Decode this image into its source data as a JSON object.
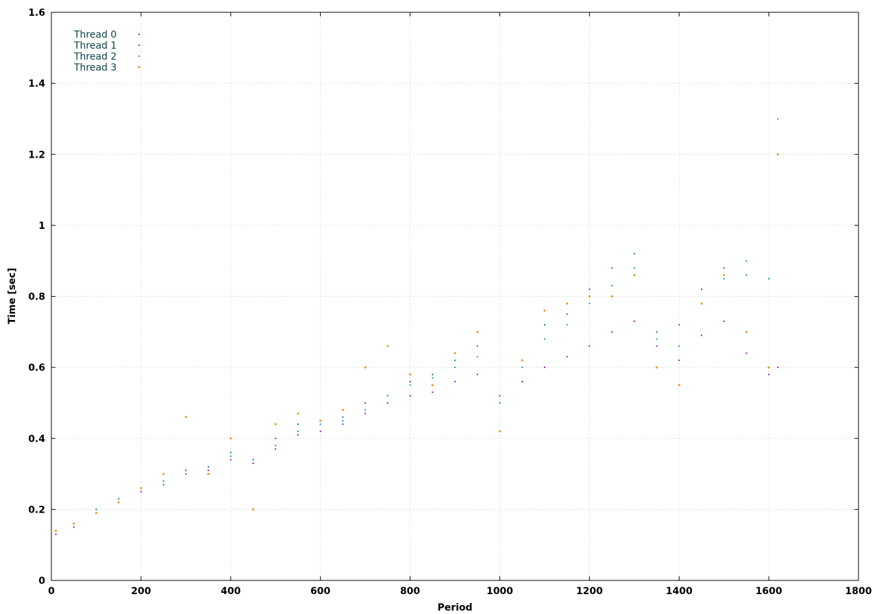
{
  "chart_data": {
    "type": "scatter",
    "title": "",
    "xlabel": "Period",
    "ylabel": "Time [sec]",
    "xlim": [
      0,
      1800
    ],
    "ylim": [
      0,
      1.6
    ],
    "x_ticks": [
      0,
      200,
      400,
      600,
      800,
      1000,
      1200,
      1400,
      1600,
      1800
    ],
    "x_tick_labels": [
      "0",
      "200",
      "400",
      "600",
      "800",
      "1000",
      "1200",
      "1400",
      "1600",
      "1800"
    ],
    "y_ticks": [
      0,
      0.2,
      0.4,
      0.6,
      0.8,
      1.0,
      1.2,
      1.4,
      1.6
    ],
    "y_tick_labels": [
      "0",
      "0.2",
      "0.4",
      "0.6",
      "0.8",
      "1",
      "1.2",
      "1.4",
      "1.6"
    ],
    "grid": true,
    "legend_position": "top-left",
    "series": [
      {
        "name": "Thread 0",
        "color": "#9400d3",
        "marker": "dot",
        "x": [
          10,
          50,
          100,
          150,
          200,
          250,
          300,
          350,
          400,
          450,
          500,
          550,
          600,
          650,
          700,
          750,
          800,
          850,
          900,
          950,
          1000,
          1050,
          1100,
          1150,
          1200,
          1250,
          1300,
          1350,
          1400,
          1450,
          1500,
          1550,
          1600,
          1620
        ],
        "y": [
          0.13,
          0.15,
          0.2,
          0.22,
          0.25,
          0.27,
          0.3,
          0.31,
          0.34,
          0.33,
          0.37,
          0.41,
          0.42,
          0.44,
          0.47,
          0.5,
          0.52,
          0.53,
          0.56,
          0.58,
          0.52,
          0.56,
          0.6,
          0.63,
          0.66,
          0.7,
          0.73,
          0.66,
          0.62,
          0.69,
          0.73,
          0.64,
          0.58,
          0.6
        ]
      },
      {
        "name": "Thread 1",
        "color": "#006b6b",
        "marker": "dot",
        "x": [
          10,
          50,
          100,
          150,
          200,
          250,
          300,
          350,
          400,
          450,
          500,
          550,
          600,
          650,
          700,
          750,
          800,
          850,
          900,
          950,
          1000,
          1050,
          1100,
          1150,
          1200,
          1250,
          1300,
          1350,
          1400,
          1450,
          1500,
          1550,
          1600,
          1620
        ],
        "y": [
          0.14,
          0.16,
          0.2,
          0.23,
          0.26,
          0.28,
          0.31,
          0.32,
          0.36,
          0.34,
          0.4,
          0.44,
          0.45,
          0.46,
          0.5,
          0.52,
          0.56,
          0.58,
          0.62,
          0.66,
          0.5,
          0.62,
          0.72,
          0.75,
          0.82,
          0.88,
          0.92,
          0.7,
          0.72,
          0.82,
          0.88,
          0.86,
          0.85,
          1.2
        ]
      },
      {
        "name": "Thread 2",
        "color": "#0095c8",
        "marker": "dot",
        "x": [
          10,
          50,
          100,
          150,
          200,
          250,
          300,
          350,
          400,
          450,
          500,
          550,
          600,
          650,
          700,
          750,
          800,
          850,
          900,
          950,
          1000,
          1050,
          1100,
          1150,
          1200,
          1250,
          1300,
          1350,
          1400,
          1450,
          1500,
          1550,
          1600,
          1620
        ],
        "y": [
          0.14,
          0.16,
          0.2,
          0.22,
          0.26,
          0.27,
          0.3,
          0.32,
          0.35,
          0.34,
          0.38,
          0.42,
          0.44,
          0.45,
          0.48,
          0.52,
          0.55,
          0.57,
          0.6,
          0.63,
          0.5,
          0.6,
          0.68,
          0.72,
          0.78,
          0.83,
          0.88,
          0.68,
          0.66,
          0.78,
          0.85,
          0.9,
          0.85,
          1.3
        ]
      },
      {
        "name": "Thread 3",
        "color": "#e8a020",
        "marker": "dot",
        "x": [
          10,
          50,
          100,
          150,
          200,
          250,
          300,
          350,
          400,
          450,
          500,
          550,
          600,
          650,
          700,
          750,
          800,
          850,
          900,
          950,
          1000,
          1050,
          1100,
          1150,
          1200,
          1250,
          1300,
          1350,
          1400,
          1450,
          1500,
          1550,
          1600,
          1620
        ],
        "y": [
          0.14,
          0.16,
          0.19,
          0.22,
          0.26,
          0.3,
          0.46,
          0.3,
          0.4,
          0.2,
          0.44,
          0.47,
          0.45,
          0.48,
          0.6,
          0.66,
          0.58,
          0.55,
          0.64,
          0.7,
          0.42,
          0.62,
          0.76,
          0.78,
          0.8,
          0.8,
          0.86,
          0.6,
          0.55,
          0.78,
          0.86,
          0.7,
          0.6,
          1.2
        ]
      }
    ]
  }
}
